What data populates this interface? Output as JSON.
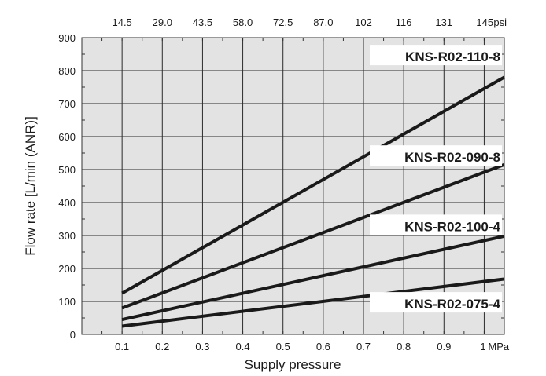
{
  "chart_data": {
    "type": "line",
    "title": "",
    "xlabel": "Supply pressure",
    "ylabel": "Flow rate [L/min (ANR)]",
    "x_ticks": [
      "0.1",
      "0.2",
      "0.3",
      "0.4",
      "0.5",
      "0.6",
      "0.7",
      "0.8",
      "0.9",
      "1"
    ],
    "x_unit": "MPa",
    "x2_ticks": [
      "14.5",
      "29.0",
      "43.5",
      "58.0",
      "72.5",
      "87.0",
      "102",
      "116",
      "131",
      "145"
    ],
    "x2_unit": "psi",
    "y_ticks": [
      "0",
      "100",
      "200",
      "300",
      "400",
      "500",
      "600",
      "700",
      "800",
      "900"
    ],
    "xlim": [
      0,
      1.05
    ],
    "ylim": [
      0,
      900
    ],
    "grid": true,
    "series": [
      {
        "name": "KNS-R02-110-8",
        "x": [
          0.1,
          1.05
        ],
        "y": [
          125,
          780
        ]
      },
      {
        "name": "KNS-R02-090-8",
        "x": [
          0.1,
          1.05
        ],
        "y": [
          80,
          515
        ]
      },
      {
        "name": "KNS-R02-100-4",
        "x": [
          0.1,
          1.05
        ],
        "y": [
          45,
          298
        ]
      },
      {
        "name": "KNS-R02-075-4",
        "x": [
          0.1,
          1.05
        ],
        "y": [
          25,
          168
        ]
      }
    ]
  }
}
